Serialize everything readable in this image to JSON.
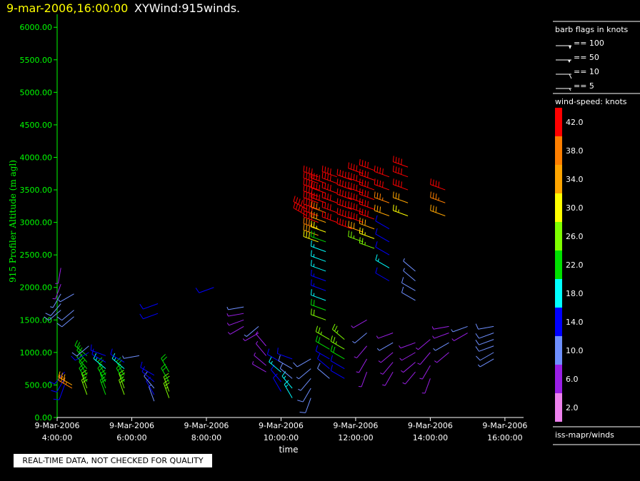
{
  "header": {
    "datetime": "9-mar-2006,16:00:00",
    "title": "XYWind:915winds."
  },
  "disclaimer": "REAL-TIME DATA, NOT CHECKED FOR QUALITY",
  "source_label": "iss-mapr/winds",
  "barb_legend": {
    "title": "barb flags in knots",
    "entries": [
      "== 100",
      "== 50",
      "== 10",
      "== 5"
    ]
  },
  "speed_legend": {
    "title": "wind-speed: knots",
    "ticks": [
      "42.0",
      "38.0",
      "34.0",
      "30.0",
      "26.0",
      "22.0",
      "18.0",
      "14.0",
      "10.0",
      "6.0",
      "2.0"
    ],
    "colors": [
      "#ff0000",
      "#ff7f00",
      "#ffa500",
      "#ffff00",
      "#7fff00",
      "#00e000",
      "#00ffff",
      "#0000ff",
      "#6e8fff",
      "#9a1fe6",
      "#ee82ee"
    ]
  },
  "chart_data": {
    "type": "scatter",
    "xlabel": "time",
    "ylabel": "915 Profiler Altitude (m agl)",
    "ylim": [
      0,
      6200
    ],
    "xlim_hours": [
      4.0,
      16.5
    ],
    "y_ticks": [
      "0.00",
      "500.00",
      "1000.00",
      "1500.00",
      "2000.00",
      "2500.00",
      "3000.00",
      "3500.00",
      "4000.00",
      "4500.00",
      "5000.00",
      "5500.00",
      "6000.00"
    ],
    "x_ticks": [
      {
        "date": "9-Mar-2006",
        "time": "4:00:00"
      },
      {
        "date": "9-Mar-2006",
        "time": "6:00:00"
      },
      {
        "date": "9-Mar-2006",
        "time": "8:00:00"
      },
      {
        "date": "9-Mar-2006",
        "time": "10:00:00"
      },
      {
        "date": "9-Mar-2006",
        "time": "12:00:00"
      },
      {
        "date": "9-Mar-2006",
        "time": "14:00:00"
      },
      {
        "date": "9-Mar-2006",
        "time": "16:00:00"
      }
    ],
    "profiles": [
      {
        "t": 4.1,
        "alts": [
          1650,
          1750,
          1900,
          2050,
          2300
        ],
        "speeds": [
          10,
          10,
          8,
          6,
          6
        ],
        "dirs": [
          230,
          220,
          210,
          200,
          190
        ]
      },
      {
        "t": 4.2,
        "alts": [
          500,
          600,
          700
        ],
        "speeds": [
          12,
          13,
          12
        ],
        "dirs": [
          200,
          210,
          220
        ]
      },
      {
        "t": 4.4,
        "alts": [
          450,
          500
        ],
        "speeds": [
          36,
          34
        ],
        "dirs": [
          300,
          300
        ]
      },
      {
        "t": 4.45,
        "alts": [
          1550,
          1650,
          1900
        ],
        "speeds": [
          11,
          10,
          9
        ],
        "dirs": [
          230,
          230,
          240
        ]
      },
      {
        "t": 4.8,
        "alts": [
          350,
          450,
          550,
          650,
          750,
          850,
          950
        ],
        "speeds": [
          24,
          24,
          23,
          22,
          21,
          20,
          20
        ],
        "dirs": [
          340,
          340,
          330,
          330,
          320,
          320,
          310
        ]
      },
      {
        "t": 4.85,
        "alts": [
          1000,
          1100
        ],
        "speeds": [
          12,
          11
        ],
        "dirs": [
          240,
          230
        ]
      },
      {
        "t": 5.3,
        "alts": [
          350,
          450,
          550,
          650,
          750,
          850,
          950
        ],
        "speeds": [
          23,
          23,
          22,
          21,
          16,
          14,
          12
        ],
        "dirs": [
          340,
          340,
          330,
          330,
          310,
          300,
          290
        ]
      },
      {
        "t": 5.8,
        "alts": [
          350,
          450,
          550,
          650,
          750,
          850
        ],
        "speeds": [
          24,
          24,
          23,
          21,
          16,
          14
        ],
        "dirs": [
          340,
          340,
          330,
          330,
          310,
          300
        ]
      },
      {
        "t": 6.2,
        "alts": [
          950
        ],
        "speeds": [
          8
        ],
        "dirs": [
          260
        ]
      },
      {
        "t": 6.6,
        "alts": [
          250,
          350,
          450,
          550,
          650
        ],
        "speeds": [
          8,
          14,
          10,
          12,
          14
        ],
        "dirs": [
          340,
          330,
          320,
          310,
          300
        ]
      },
      {
        "t": 6.7,
        "alts": [
          1600,
          1750
        ],
        "speeds": [
          12,
          13
        ],
        "dirs": [
          250,
          250
        ]
      },
      {
        "t": 7.0,
        "alts": [
          300,
          400,
          550,
          700
        ],
        "speeds": [
          25,
          24,
          23,
          22
        ],
        "dirs": [
          340,
          340,
          330,
          330
        ]
      },
      {
        "t": 8.2,
        "alts": [
          2000
        ],
        "speeds": [
          14
        ],
        "dirs": [
          250
        ]
      },
      {
        "t": 9.0,
        "alts": [
          1400,
          1500,
          1600,
          1700
        ],
        "speeds": [
          6,
          7,
          7,
          8
        ],
        "dirs": [
          240,
          250,
          260,
          260
        ]
      },
      {
        "t": 9.4,
        "alts": [
          1300,
          1400
        ],
        "speeds": [
          7,
          8
        ],
        "dirs": [
          240,
          230
        ]
      },
      {
        "t": 9.6,
        "alts": [
          700,
          800,
          950,
          1100
        ],
        "speeds": [
          6,
          7,
          7,
          6
        ],
        "dirs": [
          300,
          310,
          320,
          320
        ]
      },
      {
        "t": 10.0,
        "alts": [
          400,
          550,
          700,
          850
        ],
        "speeds": [
          14,
          12,
          16,
          12
        ],
        "dirs": [
          330,
          320,
          310,
          300
        ]
      },
      {
        "t": 10.3,
        "alts": [
          300,
          450,
          600,
          750,
          900
        ],
        "speeds": [
          16,
          18,
          10,
          10,
          12
        ],
        "dirs": [
          330,
          320,
          310,
          300,
          290
        ]
      },
      {
        "t": 10.7,
        "alts": [
          3100,
          3200
        ],
        "speeds": [
          42,
          42
        ],
        "dirs": [
          300,
          300
        ]
      },
      {
        "t": 10.8,
        "alts": [
          300,
          450,
          600,
          750,
          900
        ],
        "speeds": [
          10,
          11,
          8,
          8,
          10
        ],
        "dirs": [
          200,
          210,
          220,
          230,
          240
        ]
      },
      {
        "t": 11.0,
        "alts": [
          2700,
          2800,
          2900,
          3000,
          3100,
          3200,
          3300,
          3400,
          3500,
          3600,
          3700
        ],
        "speeds": [
          30,
          34,
          38,
          40,
          42,
          42,
          42,
          42,
          42,
          42,
          42
        ],
        "dirs": [
          290,
          290,
          290,
          290,
          290,
          290,
          290,
          290,
          290,
          290,
          290
        ]
      },
      {
        "t": 11.2,
        "alts": [
          1500,
          1650,
          1800,
          1950,
          2100,
          2250,
          2400,
          2550,
          2700,
          2850,
          3000,
          3150,
          3300,
          3450,
          3600
        ],
        "speeds": [
          24,
          20,
          18,
          15,
          15,
          16,
          17,
          18,
          22,
          28,
          34,
          38,
          40,
          42,
          42
        ],
        "dirs": [
          290,
          290,
          290,
          290,
          290,
          290,
          290,
          290,
          290,
          290,
          290,
          290,
          290,
          290,
          290
        ]
      },
      {
        "t": 11.3,
        "alts": [
          600,
          750,
          900,
          1050,
          1200
        ],
        "speeds": [
          10,
          12,
          14,
          22,
          26
        ],
        "dirs": [
          310,
          310,
          300,
          300,
          300
        ]
      },
      {
        "t": 11.5,
        "alts": [
          3000,
          3150,
          3300,
          3450,
          3600,
          3700
        ],
        "speeds": [
          42,
          42,
          42,
          42,
          42,
          42
        ],
        "dirs": [
          290,
          290,
          290,
          290,
          290,
          290
        ]
      },
      {
        "t": 11.7,
        "alts": [
          600,
          750,
          900,
          1050,
          1200
        ],
        "speeds": [
          12,
          12,
          22,
          26,
          26
        ],
        "dirs": [
          300,
          300,
          300,
          300,
          310
        ]
      },
      {
        "t": 11.9,
        "alts": [
          2900,
          3050,
          3200,
          3350,
          3500,
          3650
        ],
        "speeds": [
          40,
          42,
          42,
          42,
          42,
          42
        ],
        "dirs": [
          290,
          290,
          290,
          290,
          290,
          290
        ]
      },
      {
        "t": 12.2,
        "alts": [
          2700,
          2850,
          3000,
          3150,
          3300,
          3450,
          3600,
          3750
        ],
        "speeds": [
          26,
          34,
          40,
          42,
          42,
          42,
          42,
          42
        ],
        "dirs": [
          290,
          290,
          290,
          290,
          290,
          290,
          290,
          290
        ]
      },
      {
        "t": 12.3,
        "alts": [
          700,
          900,
          1100,
          1300,
          1500
        ],
        "speeds": [
          6,
          7,
          7,
          8,
          6
        ],
        "dirs": [
          200,
          210,
          220,
          230,
          240
        ]
      },
      {
        "t": 12.5,
        "alts": [
          2600,
          2750,
          2900,
          3050,
          3200,
          3350,
          3500,
          3650,
          3800
        ],
        "speeds": [
          26,
          28,
          34,
          40,
          42,
          42,
          42,
          42,
          42
        ],
        "dirs": [
          290,
          290,
          290,
          290,
          290,
          290,
          290,
          290,
          290
        ]
      },
      {
        "t": 12.9,
        "alts": [
          2100,
          2300,
          2500,
          2700,
          2900,
          3100,
          3300,
          3500,
          3700
        ],
        "speeds": [
          14,
          16,
          14,
          14,
          14,
          34,
          38,
          42,
          42
        ],
        "dirs": [
          300,
          300,
          300,
          300,
          300,
          290,
          290,
          290,
          290
        ]
      },
      {
        "t": 13.0,
        "alts": [
          700,
          850,
          1000,
          1150,
          1300
        ],
        "speeds": [
          6,
          7,
          7,
          8,
          7
        ],
        "dirs": [
          210,
          220,
          230,
          240,
          250
        ]
      },
      {
        "t": 13.4,
        "alts": [
          3100,
          3300,
          3500,
          3700,
          3850
        ],
        "speeds": [
          28,
          34,
          40,
          42,
          42
        ],
        "dirs": [
          290,
          290,
          290,
          290,
          290
        ]
      },
      {
        "t": 13.6,
        "alts": [
          1800,
          1950,
          2100,
          2250
        ],
        "speeds": [
          10,
          10,
          8,
          8
        ],
        "dirs": [
          300,
          300,
          310,
          310
        ]
      },
      {
        "t": 13.6,
        "alts": [
          700,
          850,
          1000,
          1150
        ],
        "speeds": [
          6,
          7,
          7,
          6
        ],
        "dirs": [
          220,
          230,
          240,
          250
        ]
      },
      {
        "t": 14.0,
        "alts": [
          600,
          800,
          1000,
          1200
        ],
        "speeds": [
          6,
          7,
          7,
          6
        ],
        "dirs": [
          200,
          210,
          220,
          230
        ]
      },
      {
        "t": 14.4,
        "alts": [
          3100,
          3300,
          3500
        ],
        "speeds": [
          34,
          38,
          42
        ],
        "dirs": [
          290,
          290,
          290
        ]
      },
      {
        "t": 14.5,
        "alts": [
          1000,
          1150,
          1300,
          1400
        ],
        "speeds": [
          7,
          8,
          7,
          7
        ],
        "dirs": [
          230,
          240,
          250,
          260
        ]
      },
      {
        "t": 15.0,
        "alts": [
          1300,
          1400
        ],
        "speeds": [
          7,
          8
        ],
        "dirs": [
          240,
          250
        ]
      },
      {
        "t": 15.7,
        "alts": [
          900,
          1000,
          1100,
          1200,
          1300,
          1400
        ],
        "speeds": [
          9,
          10,
          10,
          10,
          11,
          10
        ],
        "dirs": [
          240,
          240,
          250,
          250,
          250,
          260
        ]
      }
    ]
  }
}
